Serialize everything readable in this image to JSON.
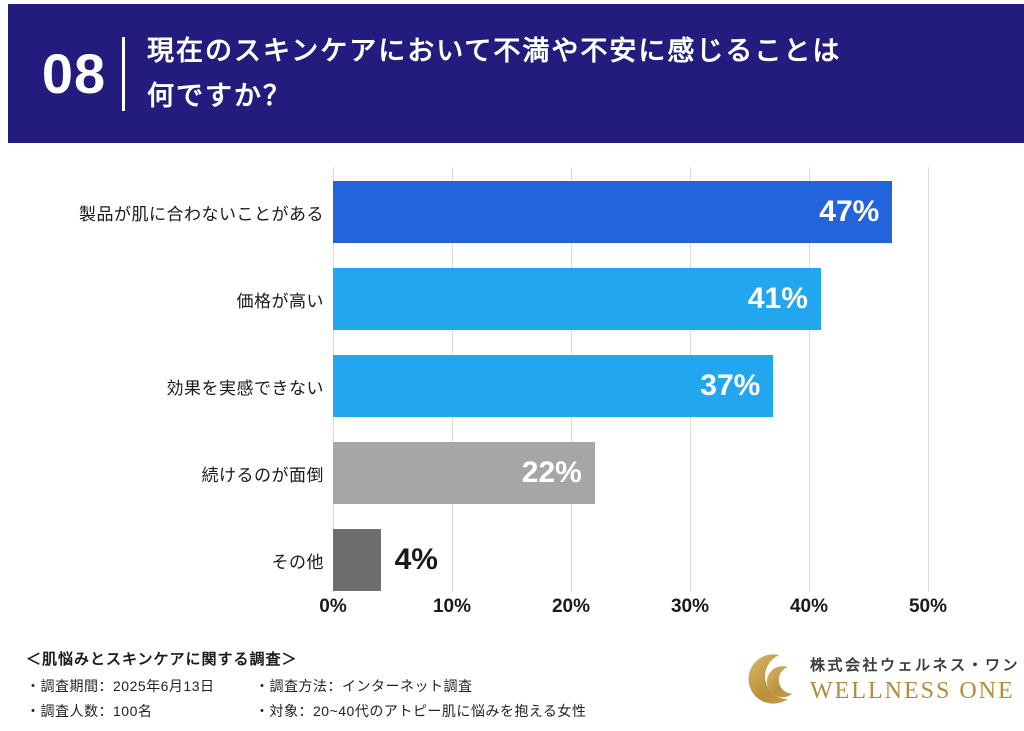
{
  "header": {
    "number": "08",
    "title_line1": "現在のスキンケアにおいて不満や不安に感じることは",
    "title_line2": "何ですか？"
  },
  "chart_data": {
    "type": "bar",
    "orientation": "horizontal",
    "title": "現在のスキンケアにおいて不満や不安に感じることは何ですか？",
    "categories": [
      "製品が肌に合わないことがある",
      "価格が高い",
      "効果を実感できない",
      "続けるのが面倒",
      "その他"
    ],
    "values": [
      47,
      41,
      37,
      22,
      4
    ],
    "value_labels": [
      "47%",
      "41%",
      "37%",
      "22%",
      "4%"
    ],
    "bar_colors": [
      "#2264DC",
      "#22A7EE",
      "#22A7EE",
      "#A6A6A6",
      "#6E6E6E"
    ],
    "xlim": [
      0,
      50
    ],
    "x_ticks": [
      "0%",
      "10%",
      "20%",
      "30%",
      "40%",
      "50%"
    ],
    "grid": true,
    "legend": false
  },
  "footer": {
    "survey_title": "＜肌悩みとスキンケアに関する調査＞",
    "notes": [
      "・調査期間：2025年6月13日",
      "・調査方法：インターネット調査",
      "・調査人数：100名",
      "・対象：20~40代のアトピー肌に悩みを抱える女性"
    ],
    "logo": {
      "company_jp": "株式会社ウェルネス・ワン",
      "company_en": "WELLNESS ONE"
    }
  },
  "colors": {
    "banner_bg": "#231C7E",
    "banner_text": "#ffffff",
    "gridline": "#dcdcdc",
    "value_label_inside": "#ffffff",
    "value_label_outside": "#1a1a1a",
    "logo_gold": "#B28C3E",
    "logo_gold_light": "#D9B76A",
    "logo_gold_dark": "#A8812F"
  },
  "icons": {
    "logo": "crescent-moon-icon"
  }
}
